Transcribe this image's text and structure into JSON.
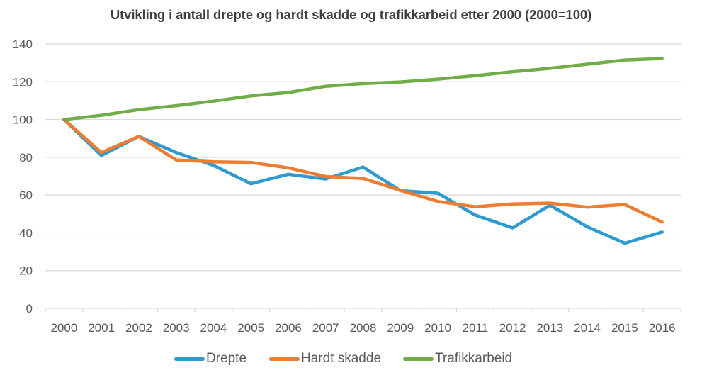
{
  "chart_data": {
    "type": "line",
    "title": "Utvikling i antall drepte og hardt skadde og trafikkarbeid etter 2000 (2000=100)",
    "xlabel": "",
    "ylabel": "",
    "categories": [
      "2000",
      "2001",
      "2002",
      "2003",
      "2004",
      "2005",
      "2006",
      "2007",
      "2008",
      "2009",
      "2010",
      "2011",
      "2012",
      "2013",
      "2014",
      "2015",
      "2016"
    ],
    "ylim": [
      0,
      140
    ],
    "yticks": [
      0,
      20,
      40,
      60,
      80,
      100,
      120,
      140
    ],
    "ytick_labels": [
      "0",
      "20",
      "40",
      "60",
      "80",
      "100",
      "120",
      "140"
    ],
    "grid": true,
    "legend_position": "bottom",
    "series": [
      {
        "name": "Drepte",
        "color": "#2E9BD0",
        "values": [
          100,
          81,
          91,
          82.5,
          75.7,
          66,
          71,
          68.5,
          74.8,
          62.3,
          61,
          49.4,
          42.6,
          54.6,
          43.2,
          34.5,
          40.4
        ]
      },
      {
        "name": "Hardt skadde",
        "color": "#ED7D31",
        "values": [
          100,
          82.5,
          91,
          78.6,
          77.6,
          77.3,
          74.4,
          69.8,
          68.8,
          62.5,
          56.6,
          53.8,
          55.3,
          55.7,
          53.6,
          55,
          45.7
        ]
      },
      {
        "name": "Trafikkarbeid",
        "color": "#70AD47",
        "values": [
          100,
          102.2,
          105.2,
          107.3,
          109.7,
          112.5,
          114.3,
          117.6,
          119,
          119.9,
          121.4,
          123.2,
          125.3,
          127.1,
          129.3,
          131.5,
          132.3
        ]
      }
    ]
  }
}
